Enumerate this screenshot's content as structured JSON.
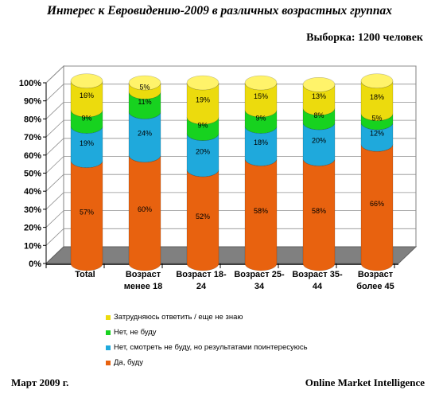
{
  "title": "Интерес к Евровидению-2009 в различных возрастных группах",
  "sample_note": "Выборка: 1200 человек",
  "footer_left": "Март 2009 г.",
  "footer_right": "Online Market Intelligence",
  "chart_data": {
    "type": "bar",
    "stacked": true,
    "categories": [
      [
        "Total"
      ],
      [
        "Возраст",
        "менее 18"
      ],
      [
        "Возраст 18-",
        "24"
      ],
      [
        "Возраст 25-",
        "34"
      ],
      [
        "Возраст 35-",
        "44"
      ],
      [
        "Возраст",
        "более 45"
      ]
    ],
    "y_ticks": [
      "0%",
      "10%",
      "20%",
      "30%",
      "40%",
      "50%",
      "60%",
      "70%",
      "80%",
      "90%",
      "100%"
    ],
    "ylim": [
      0,
      100
    ],
    "series": [
      {
        "name": "Да, буду",
        "color": "#e8620f",
        "top": "#f39a5c",
        "values": [
          57,
          60,
          52,
          58,
          58,
          66
        ]
      },
      {
        "name": "Нет, смотреть не буду, но результатами поинтересуюсь",
        "color": "#1fa9dc",
        "top": "#6cd0f0",
        "values": [
          19,
          24,
          20,
          18,
          20,
          12
        ]
      },
      {
        "name": "Нет, не буду",
        "color": "#17d21f",
        "top": "#78ef7d",
        "values": [
          9,
          11,
          9,
          9,
          8,
          5
        ]
      },
      {
        "name": "Затрудняюсь ответить / еще не знаю",
        "color": "#ecdb0d",
        "top": "#fff36a",
        "values": [
          16,
          5,
          19,
          15,
          13,
          18
        ]
      }
    ],
    "legend_position": "bottom"
  }
}
